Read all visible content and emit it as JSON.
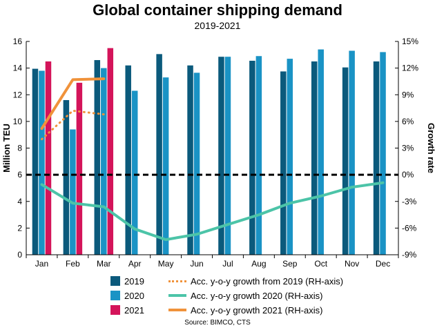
{
  "chart_data": {
    "type": "bar",
    "title": "Global container shipping demand",
    "subtitle": "2019-2021",
    "ylabel": "Million TEU",
    "y2label": "Growth rate",
    "ylim": [
      0,
      16
    ],
    "yticks": [
      "0",
      "2",
      "4",
      "6",
      "8",
      "10",
      "12",
      "14",
      "16"
    ],
    "y2lim": [
      -9,
      15
    ],
    "y2ticks": [
      "-9%",
      "-6%",
      "-3%",
      "0%",
      "3%",
      "6%",
      "9%",
      "12%",
      "15%"
    ],
    "categories": [
      "Jan",
      "Feb",
      "Mar",
      "Apr",
      "May",
      "Jun",
      "Jul",
      "Aug",
      "Sep",
      "Oct",
      "Nov",
      "Dec"
    ],
    "series": [
      {
        "name": "2019",
        "kind": "bar",
        "color": "#0b5a7c",
        "values": [
          13.95,
          11.6,
          14.6,
          14.2,
          15.05,
          14.2,
          14.85,
          14.55,
          13.75,
          14.5,
          14.05,
          14.5
        ]
      },
      {
        "name": "2020",
        "kind": "bar",
        "color": "#1a93c5",
        "values": [
          13.8,
          9.4,
          14.0,
          12.3,
          13.3,
          13.65,
          14.85,
          14.9,
          14.7,
          15.4,
          15.3,
          15.2
        ]
      },
      {
        "name": "2021",
        "kind": "bar",
        "color": "#d4145a",
        "values": [
          14.5,
          12.9,
          15.5,
          null,
          null,
          null,
          null,
          null,
          null,
          null,
          null,
          null
        ]
      },
      {
        "name": "Acc. y-o-y growth from 2019 (RH-axis)",
        "kind": "line",
        "axis": "right",
        "style": "dotted",
        "color": "#f0923a",
        "values": [
          4.0,
          7.2,
          6.8,
          null,
          null,
          null,
          null,
          null,
          null,
          null,
          null,
          null
        ]
      },
      {
        "name": "Acc. y-o-y growth 2020 (RH-axis)",
        "kind": "line",
        "axis": "right",
        "style": "solid",
        "color": "#4cc4a8",
        "values": [
          -1.1,
          -3.2,
          -3.6,
          -6.1,
          -7.3,
          -6.7,
          -5.6,
          -4.5,
          -3.2,
          -2.4,
          -1.4,
          -0.9
        ]
      },
      {
        "name": "Acc. y-o-y growth 2021 (RH-axis)",
        "kind": "line",
        "axis": "right",
        "style": "solid",
        "color": "#f0923a",
        "values": [
          5.2,
          10.7,
          10.8,
          null,
          null,
          null,
          null,
          null,
          null,
          null,
          null,
          null
        ]
      }
    ],
    "zero_reference_line": {
      "axis": "right",
      "value": 0,
      "style": "dashed",
      "color": "#000000"
    },
    "grid": false,
    "legend": "bottom"
  },
  "source": "Source: BIMCO, CTS"
}
